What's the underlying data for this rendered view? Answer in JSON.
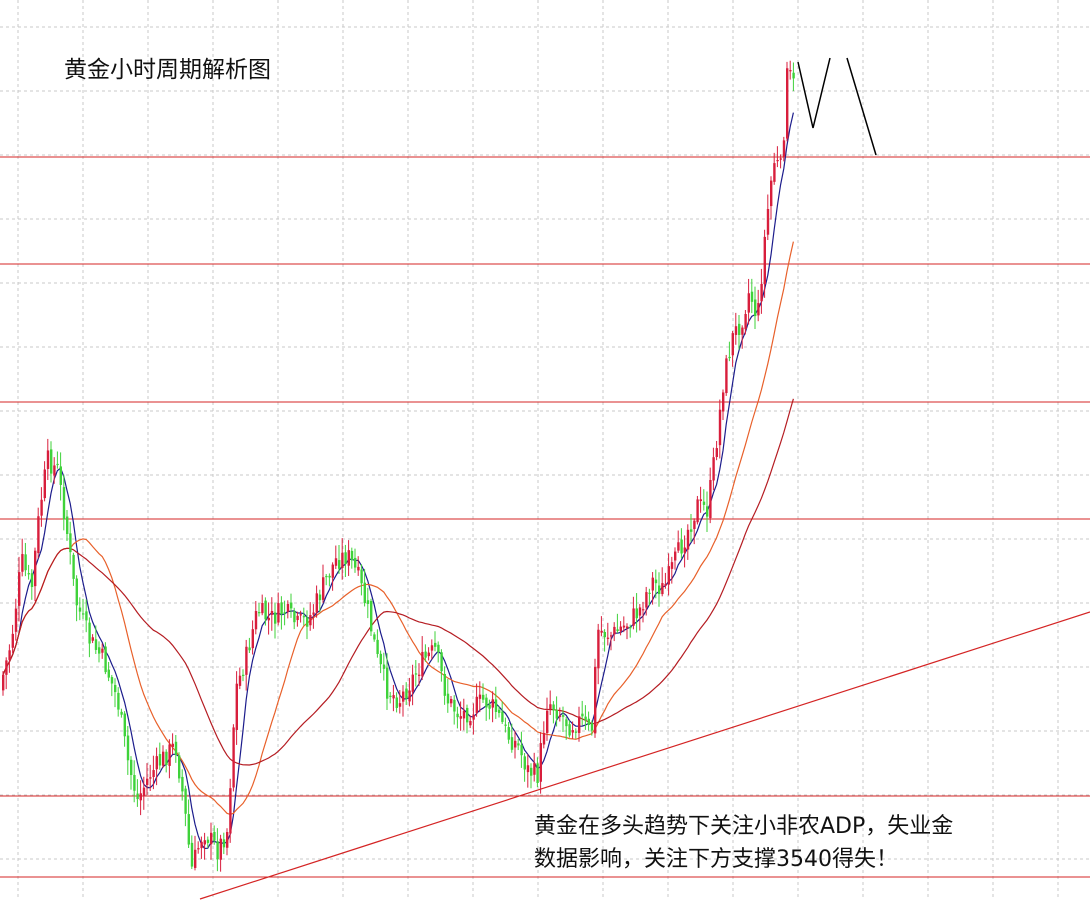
{
  "title": "黄金小时周期解析图",
  "annotation": {
    "line1": "黄金在多头趋势下关注小非农ADP，失业金",
    "line2": "数据影响，关注下方支撑3540得失！"
  },
  "chart_data": {
    "type": "candlestick",
    "timeframe": "1H",
    "colors": {
      "up": "#d81e3c",
      "down": "#3fd23a",
      "ma_short": "#1c1c8c",
      "ma_mid": "#e8602a",
      "ma_long": "#b51c22",
      "level_lines": "#d42424",
      "trendline": "#d42424",
      "projection": "#000000",
      "grid": "#c8c8c8"
    },
    "grid": "dashed",
    "horizontal_levels": 7,
    "trendline": "rising support line",
    "projection": "zigzag projection near top",
    "moving_averages": [
      "short",
      "mid",
      "long"
    ]
  }
}
